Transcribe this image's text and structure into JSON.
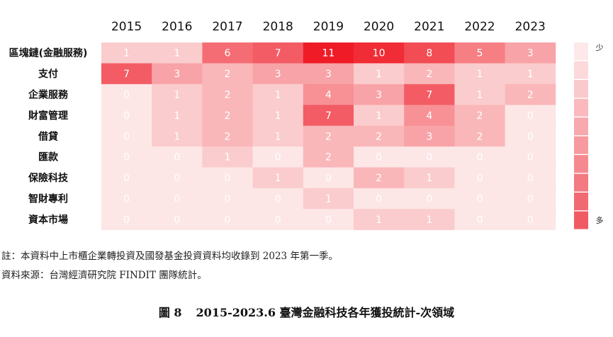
{
  "chart_data": {
    "type": "heatmap",
    "years": [
      "2015",
      "2016",
      "2017",
      "2018",
      "2019",
      "2020",
      "2021",
      "2022",
      "2023"
    ],
    "categories": [
      "區塊鏈(金融服務)",
      "支付",
      "企業服務",
      "財富管理",
      "借貸",
      "匯款",
      "保險科技",
      "智財專利",
      "資本市場"
    ],
    "values": [
      [
        1,
        1,
        6,
        7,
        11,
        10,
        8,
        5,
        3
      ],
      [
        7,
        3,
        2,
        3,
        3,
        1,
        2,
        1,
        1
      ],
      [
        0,
        1,
        2,
        1,
        4,
        3,
        7,
        1,
        2
      ],
      [
        0,
        1,
        2,
        1,
        7,
        1,
        4,
        2,
        0
      ],
      [
        0,
        1,
        2,
        1,
        2,
        2,
        3,
        2,
        0
      ],
      [
        0,
        0,
        1,
        0,
        2,
        0,
        0,
        0,
        0
      ],
      [
        0,
        0,
        0,
        1,
        0,
        2,
        1,
        0,
        0
      ],
      [
        0,
        0,
        0,
        0,
        1,
        0,
        0,
        0,
        0
      ],
      [
        0,
        0,
        0,
        0,
        0,
        1,
        1,
        0,
        0
      ]
    ],
    "legend": {
      "low_label": "少",
      "high_label": "多",
      "steps": 10
    },
    "colors": {
      "low": "#fde6e6",
      "high": "#ef1c27",
      "cell_text": "#ffffff",
      "legend_low": "#fde9ea",
      "legend_high": "#f05a63"
    }
  },
  "notes": {
    "line1": "註：本資料中上市櫃企業轉投資及國發基金投資資料均收錄到 2023 年第一季。",
    "line2": "資料來源：台灣經濟研究院 FINDIT 團隊統計。"
  },
  "caption": {
    "figure_no": "圖 8",
    "title": "2015-2023.6 臺灣金融科技各年獲投統計-次領域"
  }
}
